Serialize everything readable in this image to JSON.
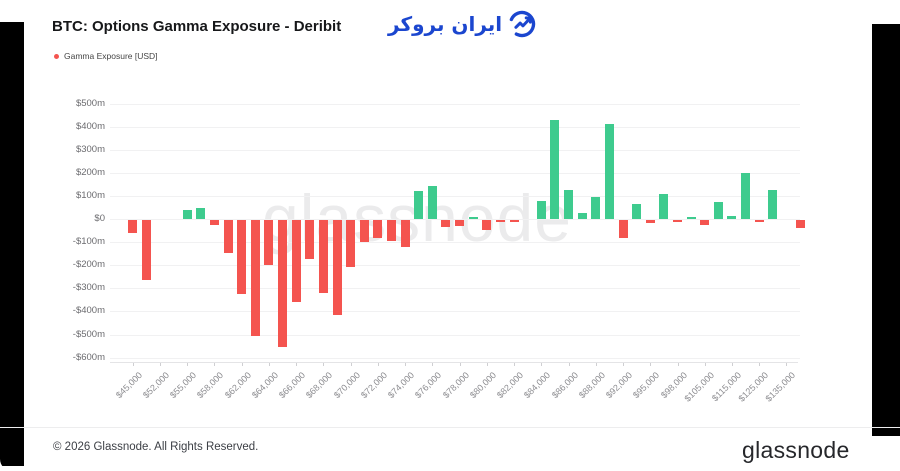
{
  "header": {
    "title": "BTC: Options Gamma Exposure - Deribit",
    "logo_text": "ایران بروکر",
    "logo_color": "#1b46cf"
  },
  "legend": {
    "label": "Gamma Exposure [USD]",
    "marker_color": "#f4544f"
  },
  "watermark": "glassnode",
  "footer": {
    "copyright": "© 2026 Glassnode. All Rights Reserved.",
    "brand": "glassnode"
  },
  "colors": {
    "positive": "#3ecb8e",
    "negative": "#f4544f"
  },
  "chart_data": {
    "type": "bar",
    "title": "BTC: Options Gamma Exposure - Deribit",
    "series_name": "Gamma Exposure [USD]",
    "y_unit": "millions USD",
    "ylim": [
      -600,
      500
    ],
    "grid": true,
    "legend_position": "top-left",
    "y_ticks": [
      {
        "label": "$500m",
        "value": 500
      },
      {
        "label": "$400m",
        "value": 400
      },
      {
        "label": "$300m",
        "value": 300
      },
      {
        "label": "$200m",
        "value": 200
      },
      {
        "label": "$100m",
        "value": 100
      },
      {
        "label": "$0",
        "value": 0
      },
      {
        "label": "-$100m",
        "value": -100
      },
      {
        "label": "-$200m",
        "value": -200
      },
      {
        "label": "-$300m",
        "value": -300
      },
      {
        "label": "-$400m",
        "value": -400
      },
      {
        "label": "-$500m",
        "value": -500
      },
      {
        "label": "-$600m",
        "value": -600
      }
    ],
    "visible_x_labels": [
      "$45,000",
      "$52,000",
      "$55,000",
      "$58,000",
      "$62,000",
      "$64,000",
      "$66,000",
      "$68,000",
      "$70,000",
      "$72,000",
      "$74,000",
      "$76,000",
      "$78,000",
      "$80,000",
      "$82,000",
      "$84,000",
      "$86,000",
      "$88,000",
      "$92,000",
      "$95,000",
      "$98,000",
      "$105,000",
      "$115,000",
      "$125,000",
      "$135,000"
    ],
    "bars": [
      {
        "slot": 1,
        "label": "$45,000",
        "value_m": -55
      },
      {
        "slot": 2,
        "label": "",
        "value_m": -260
      },
      {
        "slot": 3,
        "label": "$52,000",
        "value_m": 0
      },
      {
        "slot": 4,
        "label": "",
        "value_m": 0
      },
      {
        "slot": 5,
        "label": "$55,000",
        "value_m": 38
      },
      {
        "slot": 6,
        "label": "",
        "value_m": 48
      },
      {
        "slot": 7,
        "label": "$58,000",
        "value_m": -20
      },
      {
        "slot": 8,
        "label": "",
        "value_m": -145
      },
      {
        "slot": 9,
        "label": "$62,000",
        "value_m": -320
      },
      {
        "slot": 10,
        "label": "",
        "value_m": -500
      },
      {
        "slot": 11,
        "label": "$64,000",
        "value_m": -195
      },
      {
        "slot": 12,
        "label": "",
        "value_m": -550
      },
      {
        "slot": 13,
        "label": "$66,000",
        "value_m": -355
      },
      {
        "slot": 14,
        "label": "",
        "value_m": -170
      },
      {
        "slot": 15,
        "label": "$68,000",
        "value_m": -315
      },
      {
        "slot": 16,
        "label": "",
        "value_m": -410
      },
      {
        "slot": 17,
        "label": "$70,000",
        "value_m": -205
      },
      {
        "slot": 18,
        "label": "",
        "value_m": -95
      },
      {
        "slot": 19,
        "label": "$72,000",
        "value_m": -80
      },
      {
        "slot": 20,
        "label": "",
        "value_m": -90
      },
      {
        "slot": 21,
        "label": "$74,000",
        "value_m": -115
      },
      {
        "slot": 22,
        "label": "",
        "value_m": 120
      },
      {
        "slot": 23,
        "label": "$76,000",
        "value_m": 145
      },
      {
        "slot": 24,
        "label": "",
        "value_m": -30
      },
      {
        "slot": 25,
        "label": "$78,000",
        "value_m": -25
      },
      {
        "slot": 26,
        "label": "",
        "value_m": 8
      },
      {
        "slot": 27,
        "label": "$80,000",
        "value_m": -45
      },
      {
        "slot": 28,
        "label": "",
        "value_m": -8
      },
      {
        "slot": 29,
        "label": "$82,000",
        "value_m": -10
      },
      {
        "slot": 30,
        "label": "",
        "value_m": 0
      },
      {
        "slot": 31,
        "label": "$84,000",
        "value_m": 80
      },
      {
        "slot": 32,
        "label": "",
        "value_m": 430
      },
      {
        "slot": 33,
        "label": "$86,000",
        "value_m": 125
      },
      {
        "slot": 34,
        "label": "",
        "value_m": 25
      },
      {
        "slot": 35,
        "label": "$88,000",
        "value_m": 95
      },
      {
        "slot": 36,
        "label": "",
        "value_m": 410
      },
      {
        "slot": 37,
        "label": "$92,000",
        "value_m": -80
      },
      {
        "slot": 38,
        "label": "",
        "value_m": 65
      },
      {
        "slot": 39,
        "label": "$95,000",
        "value_m": -12
      },
      {
        "slot": 40,
        "label": "",
        "value_m": 108
      },
      {
        "slot": 41,
        "label": "$98,000",
        "value_m": -6
      },
      {
        "slot": 42,
        "label": "",
        "value_m": 10
      },
      {
        "slot": 43,
        "label": "$105,000",
        "value_m": -20
      },
      {
        "slot": 44,
        "label": "",
        "value_m": 75
      },
      {
        "slot": 45,
        "label": "$115,000",
        "value_m": 15
      },
      {
        "slot": 46,
        "label": "",
        "value_m": 200
      },
      {
        "slot": 47,
        "label": "$125,000",
        "value_m": -10
      },
      {
        "slot": 48,
        "label": "",
        "value_m": 125
      },
      {
        "slot": 49,
        "label": "$135,000",
        "value_m": 0
      },
      {
        "slot": 50,
        "label": "",
        "value_m": -35
      }
    ]
  }
}
